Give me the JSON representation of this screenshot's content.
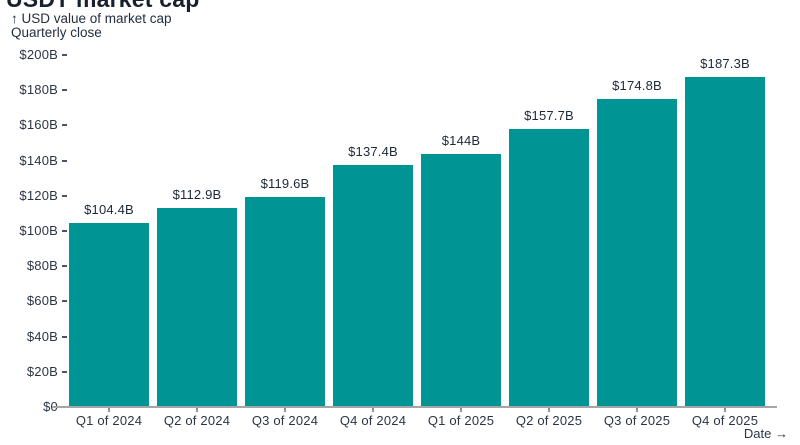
{
  "page": {
    "background": "#ffffff"
  },
  "chart_data": {
    "type": "bar",
    "title": "USDT market cap",
    "subtitle_line1": "↑ USD value of market cap",
    "subtitle_line2": "Quarterly close",
    "xlabel": "Date →",
    "categories": [
      "Q1 of 2024",
      "Q2 of 2024",
      "Q3 of 2024",
      "Q4 of 2024",
      "Q1 of 2025",
      "Q2 of 2025",
      "Q3 of 2025",
      "Q4 of 2025"
    ],
    "values": [
      104.4,
      112.9,
      119.6,
      137.4,
      144,
      157.7,
      174.8,
      187.3
    ],
    "value_labels": [
      "$104.4B",
      "$112.9B",
      "$119.6B",
      "$137.4B",
      "$144B",
      "$157.7B",
      "$174.8B",
      "$187.3B"
    ],
    "ylim": [
      0,
      200
    ],
    "y_ticks": [
      {
        "value": 0,
        "label": "$0"
      },
      {
        "value": 20,
        "label": "$20B"
      },
      {
        "value": 40,
        "label": "$40B"
      },
      {
        "value": 60,
        "label": "$60B"
      },
      {
        "value": 80,
        "label": "$80B"
      },
      {
        "value": 100,
        "label": "$100B"
      },
      {
        "value": 120,
        "label": "$120B"
      },
      {
        "value": 140,
        "label": "$140B"
      },
      {
        "value": 160,
        "label": "$160B"
      },
      {
        "value": 180,
        "label": "$180B"
      },
      {
        "value": 200,
        "label": "$200B"
      }
    ],
    "grid": false,
    "legend": "none",
    "colors": {
      "bar": "#009494",
      "text": "#1d2939",
      "axis_line": "#a5a5a5",
      "tick": "#8f9499"
    }
  }
}
